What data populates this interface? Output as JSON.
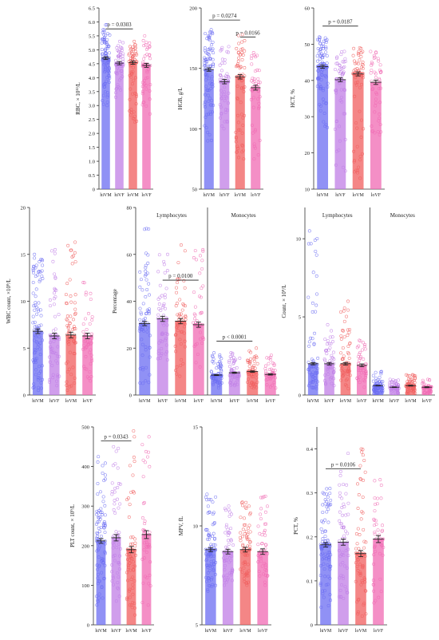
{
  "categories": [
    "hiVM",
    "hiVF",
    "loVM",
    "loVF"
  ],
  "colors": {
    "hiVM": "#6b6cf2",
    "hiVF": "#c07ee6",
    "loVM": "#f05d5d",
    "loVF": "#f06ab3",
    "bar_alpha": 0.75
  },
  "chart_data": [
    {
      "type": "bar",
      "ylabel": "RBC, × 10¹²/L",
      "ylim": [
        0,
        6.5
      ],
      "yticks": [
        "0",
        "0.5",
        "1.0",
        "1.5",
        "2.0",
        "2.5",
        "3.0",
        "3.5",
        "4.0",
        "4.5",
        "5.0",
        "5.5",
        "6.0",
        "6.5"
      ],
      "ytick_values": [
        0,
        0.5,
        1.0,
        1.5,
        2.0,
        2.5,
        3.0,
        3.5,
        4.0,
        4.5,
        5.0,
        5.5,
        6.0,
        6.5
      ],
      "values": [
        4.7,
        4.52,
        4.54,
        4.44
      ],
      "errors": [
        0.05,
        0.06,
        0.06,
        0.07
      ],
      "scatter": {
        "lo": [
          3.0,
          3.3,
          2.4,
          2.7
        ],
        "hi": [
          5.9,
          5.3,
          5.3,
          5.5
        ],
        "n": [
          95,
          60,
          70,
          50
        ]
      },
      "annotations": [
        {
          "text": "p = 0.0303",
          "from": 0,
          "to": 2,
          "y": 5.75
        }
      ]
    },
    {
      "type": "bar",
      "ylabel": "HGB, g/L",
      "ylim": [
        50,
        200
      ],
      "yticks": [
        "50",
        "100",
        "150",
        "200"
      ],
      "ytick_values": [
        50,
        100,
        150,
        200
      ],
      "values": [
        149,
        139,
        143,
        134
      ],
      "errors": [
        1.4,
        1.8,
        1.8,
        2.0
      ],
      "scatter": {
        "lo": [
          90,
          100,
          75,
          75
        ],
        "hi": [
          182,
          168,
          178,
          163
        ],
        "n": [
          95,
          60,
          70,
          50
        ]
      },
      "annotations": [
        {
          "text": "p = 0.0274",
          "from": 0,
          "to": 2,
          "y": 190
        },
        {
          "text": "p = 0.0166",
          "from": 2,
          "to": 3,
          "y": 176
        }
      ]
    },
    {
      "type": "bar",
      "ylabel": "HCT, %",
      "ylim": [
        10,
        60
      ],
      "yticks": [
        "10",
        "20",
        "30",
        "40",
        "50",
        "60"
      ],
      "ytick_values": [
        10,
        20,
        30,
        40,
        50,
        60
      ],
      "values": [
        43.8,
        40.2,
        41.8,
        39.5
      ],
      "errors": [
        0.45,
        0.55,
        0.55,
        0.6
      ],
      "scatter": {
        "lo": [
          27,
          15,
          13,
          25
        ],
        "hi": [
          52,
          48,
          49,
          48
        ],
        "n": [
          95,
          60,
          70,
          50
        ]
      },
      "annotations": [
        {
          "text": "p = 0.0187",
          "from": 0,
          "to": 2,
          "y": 55
        }
      ]
    },
    {
      "type": "bar",
      "ylabel": "WBC count, ×10⁹/L",
      "ylim": [
        0,
        20
      ],
      "yticks": [
        "0",
        "5",
        "10",
        "15",
        "20"
      ],
      "ytick_values": [
        0,
        5,
        10,
        15,
        20
      ],
      "values": [
        6.8,
        6.3,
        6.4,
        6.3
      ],
      "errors": [
        0.25,
        0.3,
        0.3,
        0.3
      ],
      "scatter": {
        "lo": [
          0.5,
          1.0,
          0.5,
          1.5
        ],
        "hi": [
          15,
          15.5,
          16.3,
          12
        ],
        "n": [
          95,
          60,
          70,
          50
        ]
      },
      "annotations": []
    },
    {
      "type": "bar",
      "ylabel": "Percentage",
      "ylim": [
        0,
        80
      ],
      "yticks": [
        "0",
        "20",
        "40",
        "60",
        "80"
      ],
      "ytick_values": [
        0,
        20,
        40,
        60,
        80
      ],
      "groups": [
        "Lymphocytes",
        "Monocytes"
      ],
      "group_values": [
        [
          30.5,
          32.5,
          31.5,
          30
        ],
        [
          8.5,
          9.5,
          10,
          8.8
        ]
      ],
      "errors": [
        [
          0.9,
          1.1,
          1.1,
          1.1
        ],
        [
          0.2,
          0.25,
          0.3,
          0.3
        ]
      ],
      "scatter": {
        "lo": [
          [
            5,
            15,
            8,
            12
          ],
          [
            3,
            4,
            3,
            3
          ]
        ],
        "hi": [
          [
            71,
            60,
            64,
            62
          ],
          [
            18,
            18,
            20,
            17
          ]
        ]
      },
      "annotations": [
        {
          "text": "p = 0.0100",
          "group": 0,
          "from": 1,
          "to": 3,
          "y": 49
        },
        {
          "text": "p < 0.0001",
          "group": 1,
          "from": 0,
          "to": 2,
          "y": 23
        }
      ]
    },
    {
      "type": "bar",
      "ylabel": "Count, × 10⁹/L",
      "ylim": [
        0,
        12
      ],
      "yticks": [
        "0",
        "5",
        "10"
      ],
      "ytick_values": [
        0,
        5,
        10
      ],
      "groups": [
        "Lymphocytes",
        "Monocytes"
      ],
      "group_values": [
        [
          2.0,
          2.0,
          2.0,
          1.9
        ],
        [
          0.6,
          0.5,
          0.6,
          0.5
        ]
      ],
      "errors": [
        [
          0.07,
          0.08,
          0.08,
          0.09
        ],
        [
          0.02,
          0.02,
          0.03,
          0.03
        ]
      ],
      "scatter": {
        "lo": [
          [
            0.4,
            0.6,
            0.4,
            0.5
          ],
          [
            0.1,
            0.1,
            0.1,
            0.1
          ]
        ],
        "hi": [
          [
            10.5,
            4.5,
            6,
            3.5
          ],
          [
            1.5,
            1.0,
            1.3,
            1.0
          ]
        ]
      },
      "annotations": []
    },
    {
      "type": "bar",
      "ylabel": "PLT count, × 10⁹/L",
      "ylim": [
        0,
        500
      ],
      "yticks": [
        "0",
        "100",
        "200",
        "300",
        "400",
        "500"
      ],
      "ytick_values": [
        0,
        100,
        200,
        300,
        400,
        500
      ],
      "values": [
        212,
        220,
        190,
        228
      ],
      "errors": [
        6,
        8,
        8,
        10
      ],
      "scatter": {
        "lo": [
          50,
          60,
          25,
          50
        ],
        "hi": [
          425,
          450,
          490,
          475
        ],
        "n": [
          95,
          60,
          70,
          50
        ]
      },
      "annotations": [
        {
          "text": "p = 0.0343",
          "from": 0,
          "to": 2,
          "y": 465
        }
      ]
    },
    {
      "type": "bar",
      "ylabel": "MPV, fL",
      "ylim": [
        5,
        15
      ],
      "yticks": [
        "5",
        "10",
        "15"
      ],
      "ytick_values": [
        5,
        10,
        15
      ],
      "values": [
        8.8,
        8.7,
        8.8,
        8.7
      ],
      "errors": [
        0.1,
        0.12,
        0.12,
        0.14
      ],
      "scatter": {
        "lo": [
          6.7,
          7.0,
          7.0,
          7.0
        ],
        "hi": [
          11.6,
          11.0,
          11.2,
          11.5
        ],
        "n": [
          95,
          60,
          70,
          50
        ]
      },
      "annotations": []
    },
    {
      "type": "bar",
      "ylabel": "PCT, %",
      "ylim": [
        0,
        0.45
      ],
      "yticks": [
        "0",
        "0.1",
        "0.2",
        "0.3",
        "0.4"
      ],
      "ytick_values": [
        0,
        0.1,
        0.2,
        0.3,
        0.4
      ],
      "values": [
        0.182,
        0.188,
        0.162,
        0.195
      ],
      "errors": [
        0.005,
        0.007,
        0.007,
        0.008
      ],
      "scatter": {
        "lo": [
          0.04,
          0.06,
          0.02,
          0.05
        ],
        "hi": [
          0.31,
          0.39,
          0.4,
          0.33
        ],
        "n": [
          95,
          60,
          70,
          50
        ]
      },
      "annotations": [
        {
          "text": "p = 0.0106",
          "from": 0,
          "to": 2,
          "y": 0.355
        }
      ]
    }
  ]
}
